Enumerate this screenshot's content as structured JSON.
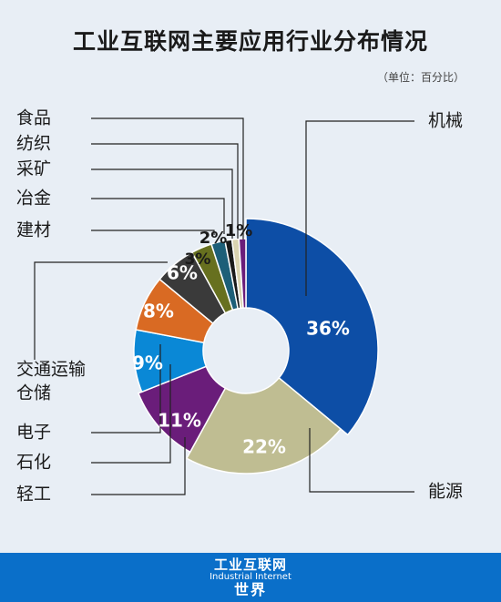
{
  "page": {
    "title": "工业互联网主要应用行业分布情况",
    "unit": "（单位：百分比）"
  },
  "footer": {
    "logo_top": "工业互联网",
    "logo_mid": "Industrial Internet",
    "logo_bot": "世界"
  },
  "colors": {
    "background": "#e8eef5",
    "footer": "#0a6fc9"
  },
  "chart_data": {
    "type": "pie",
    "donut": true,
    "categories": [
      "机械",
      "能源",
      "轻工",
      "石化",
      "电子",
      "交通运输仓储",
      "建材",
      "冶金",
      "采矿",
      "纺织",
      "食品"
    ],
    "values": [
      36,
      22,
      11,
      9,
      8,
      6,
      3,
      2,
      1,
      1,
      1
    ],
    "value_labels": [
      "36%",
      "22%",
      "11%",
      "9%",
      "8%",
      "6%",
      "3%",
      "2%",
      "",
      "1%",
      ""
    ],
    "label_lines": [
      "机械",
      "能源",
      "轻工",
      "石化",
      "电子",
      "交通运输\n仓储",
      "建材",
      "冶金",
      "采矿",
      "纺织",
      "食品"
    ],
    "colors": [
      "#0d4ea6",
      "#bfbd92",
      "#6a1d7a",
      "#0a88d6",
      "#d96a23",
      "#3a3a3a",
      "#67701f",
      "#1d5f78",
      "#1a1a1a",
      "#d9d3b0",
      "#6a1d7a"
    ],
    "title": "工业互联网主要应用行业分布情况",
    "unit": "（单位：百分比）"
  }
}
